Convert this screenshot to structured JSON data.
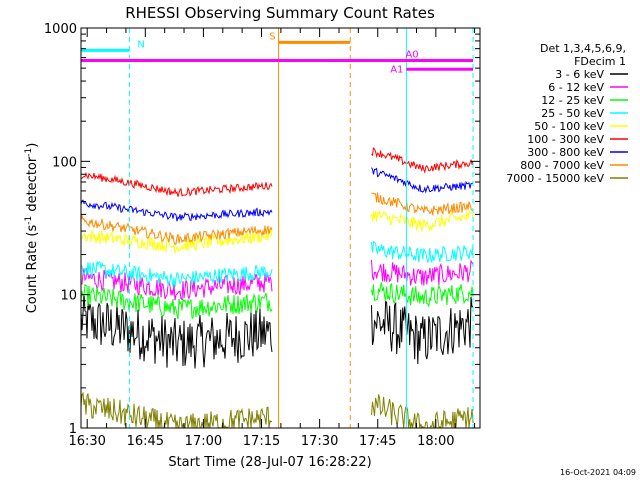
{
  "chart_data": {
    "type": "line",
    "title": "RHESSI Observing Summary Count Rates",
    "xlabel": "Start Time (28-Jul-07 16:28:22)",
    "ylabel_main": "Count Rate (s",
    "ylabel_sup1": "-1",
    "ylabel_mid": " detector",
    "ylabel_sup2": "-1",
    "ylabel_end": ")",
    "yscale": "log",
    "ylim": [
      1,
      1000
    ],
    "xlim_minutes": [
      0,
      103
    ],
    "x_ticks": [
      {
        "label": "16:30",
        "minute": 1.6
      },
      {
        "label": "16:45",
        "minute": 16.6
      },
      {
        "label": "17:00",
        "minute": 31.6
      },
      {
        "label": "17:15",
        "minute": 46.6
      },
      {
        "label": "17:30",
        "minute": 61.6
      },
      {
        "label": "17:45",
        "minute": 76.6
      },
      {
        "label": "18:00",
        "minute": 91.6
      }
    ],
    "y_ticks": [
      {
        "label": "1",
        "value": 1
      },
      {
        "label": "10",
        "value": 10
      },
      {
        "label": "100",
        "value": 100
      },
      {
        "label": "1000",
        "value": 1000
      }
    ],
    "legend_header": [
      "Det 1,3,4,5,6,9,",
      "FDecim 1"
    ],
    "series": [
      {
        "name": "3 - 6 keV",
        "color": "#000000",
        "seg1": [
          6.5,
          4.2,
          5.2
        ],
        "seg2": [
          6.5,
          4.5,
          6.2
        ],
        "noise": 0.2
      },
      {
        "name": "6 - 12 keV",
        "color": "#ff00ff",
        "seg1": [
          13.5,
          10.8,
          12.5
        ],
        "seg2": [
          15.5,
          13.5,
          15.0
        ],
        "noise": 0.08
      },
      {
        "name": "12 - 25 keV",
        "color": "#00ff00",
        "seg1": [
          10.0,
          7.8,
          9.0
        ],
        "seg2": [
          11.0,
          9.5,
          10.5
        ],
        "noise": 0.08
      },
      {
        "name": "25 - 50 keV",
        "color": "#00ffff",
        "seg1": [
          16.0,
          13.0,
          15.0
        ],
        "seg2": [
          22.0,
          19.5,
          21.0
        ],
        "noise": 0.06
      },
      {
        "name": "50 - 100 keV",
        "color": "#ffff00",
        "seg1": [
          28.0,
          23.0,
          28.0
        ],
        "seg2": [
          40.0,
          33.0,
          39.0
        ],
        "noise": 0.05
      },
      {
        "name": "100 - 300 keV",
        "color": "#ff0000",
        "seg1": [
          80.0,
          58.0,
          66.0
        ],
        "seg2": [
          120.0,
          88.0,
          98.0
        ],
        "noise": 0.03
      },
      {
        "name": "300 - 800 keV",
        "color": "#0000ff",
        "seg1": [
          49.0,
          38.0,
          42.0
        ],
        "seg2": [
          85.0,
          62.0,
          66.0
        ],
        "noise": 0.03
      },
      {
        "name": "800 - 7000 keV",
        "color": "#ff8c00",
        "seg1": [
          36.0,
          26.0,
          31.0
        ],
        "seg2": [
          55.0,
          42.0,
          46.0
        ],
        "noise": 0.04
      },
      {
        "name": "7000 - 15000 keV",
        "color": "#808000",
        "seg1": [
          1.5,
          1.0,
          1.2
        ],
        "seg2": [
          1.5,
          1.0,
          1.2
        ],
        "noise": 0.1
      }
    ],
    "data_gap_minutes": [
      49.3,
      75.0
    ],
    "segment1_minutes": [
      0.0,
      49.3
    ],
    "segment2_minutes": [
      75.0,
      101.2
    ],
    "flags": [
      {
        "label": "N",
        "color": "#00ffff",
        "start": 0.0,
        "end": 12.5,
        "level": 680
      },
      {
        "label": "S",
        "color": "#ff8c00",
        "start": 51.0,
        "end": 69.5,
        "level": 780
      },
      {
        "label": "A0",
        "color": "#ff00ff",
        "start": 0.0,
        "end": 101.2,
        "level": 570
      },
      {
        "label": "A1",
        "color": "#ff00ff",
        "start": 84.0,
        "end": 101.2,
        "level": 490
      }
    ],
    "markers": [
      {
        "color": "#00ffff",
        "style": "solid",
        "minute": 0.0
      },
      {
        "color": "#00ffff",
        "style": "dashed",
        "minute": 12.5
      },
      {
        "color": "#ff8c00",
        "style": "solid",
        "minute": 51.0
      },
      {
        "color": "#ff8c00",
        "style": "dashed",
        "minute": 69.5
      },
      {
        "color": "#00ffff",
        "style": "solid",
        "minute": 84.0
      },
      {
        "color": "#00ffff",
        "style": "dashed",
        "minute": 101.2
      }
    ]
  },
  "footer": {
    "timestamp": "16-Oct-2021 04:09"
  }
}
